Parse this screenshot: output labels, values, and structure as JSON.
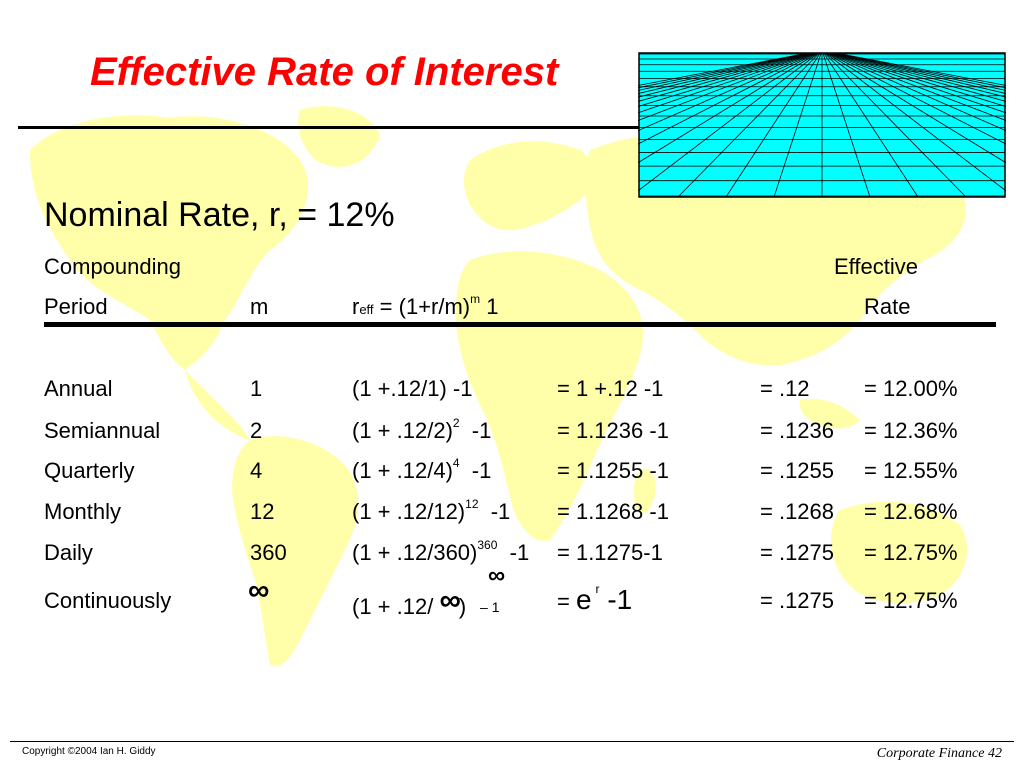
{
  "title": "Effective Rate of Interest",
  "nominal_rate": "Nominal Rate, r, = 12%",
  "headers": {
    "compounding": "Compounding",
    "period": "Period",
    "m": "m",
    "formula_r": "r",
    "formula_sub": "eff",
    "formula_body": " = (1+r/m)",
    "formula_exp": "m",
    "formula_tail": "  1",
    "effective": "Effective",
    "rate": "Rate"
  },
  "rows": [
    {
      "period": "Annual",
      "m": "1",
      "formula": "(1 +.12/1)  -1",
      "exp": "",
      "formula_tail": "",
      "value": "= 1 +.12 -1",
      "decimal": "= .12",
      "rate": "= 12.00%"
    },
    {
      "period": "Semiannual",
      "m": "2",
      "formula": "(1 + .12/2)",
      "exp": "2",
      "formula_tail": "  -1",
      "value": "= 1.1236 -1",
      "decimal": "= .1236",
      "rate": "= 12.36%"
    },
    {
      "period": "Quarterly",
      "m": "4",
      "formula": "(1 + .12/4)",
      "exp": "4",
      "formula_tail": "  -1",
      "value": "= 1.1255 -1",
      "decimal": "= .1255",
      "rate": "= 12.55%"
    },
    {
      "period": "Monthly",
      "m": "12",
      "formula": "(1 + .12/12)",
      "exp": "12",
      "formula_tail": "  -1",
      "value": "= 1.1268 -1",
      "decimal": "= .1268",
      "rate": "= 12.68%"
    },
    {
      "period": "Daily",
      "m": "360",
      "formula": "(1 + .12/360)",
      "exp": "360",
      "formula_tail": "  -1",
      "value": "= 1.1275-1",
      "decimal": "= .1275",
      "rate": "= 12.75%"
    }
  ],
  "continuous": {
    "period": "Continuously",
    "m_symbol": "∞",
    "formula_pre": "(1 + .12/ ",
    "formula_symbol": "∞",
    "formula_post": ")",
    "exp_symbol": "∞",
    "formula_tail": " – 1",
    "value_pre": "= ",
    "value_e": "e",
    "value_exp": "r",
    "value_tail": " -1",
    "decimal": "= .1275",
    "rate": "= 12.75%"
  },
  "footer": {
    "copyright": "Copyright ©2004 Ian H. Giddy",
    "page": "Corporate Finance 42"
  },
  "colors": {
    "title": "#ff0000",
    "map": "#ffffaa",
    "grid_fill": "#00ffff"
  }
}
